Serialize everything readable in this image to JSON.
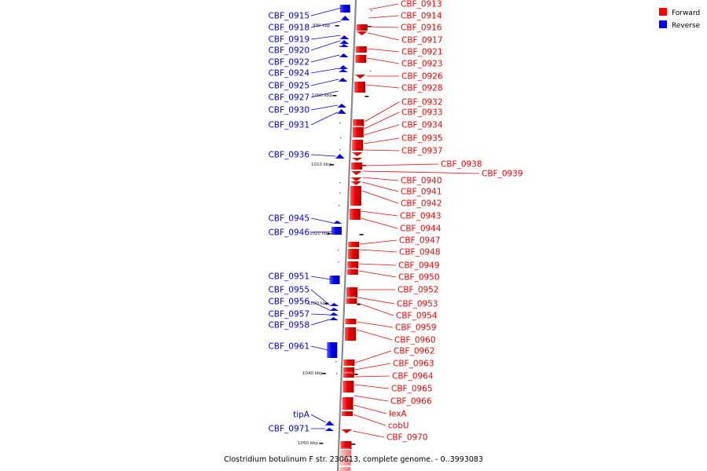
{
  "caption": "Clostridium botulinum F str. 230613, complete genome. - 0..3993083",
  "legend": [
    {
      "label": "Forward",
      "color": "#ff0000"
    },
    {
      "label": "Reverse",
      "color": "#0000ff"
    }
  ],
  "colors": {
    "forward": "#ff0000",
    "reverse": "#0000ff",
    "line": "#888888"
  },
  "scale_marks": [
    "990 kbp",
    "1000 kbp",
    "1010 kbp",
    "1020 kbp",
    "1030 kbp",
    "1040 kbp",
    "1050 kbp"
  ],
  "reverse_genes": [
    "CBF_0915",
    "CBF_0918",
    "CBF_0919",
    "CBF_0920",
    "CBF_0922",
    "CBF_0924",
    "CBF_0925",
    "CBF_0927",
    "CBF_0930",
    "CBF_0931",
    "CBF_0936",
    "CBF_0945",
    "CBF_0946",
    "CBF_0951",
    "CBF_0955",
    "CBF_0956",
    "CBF_0957",
    "CBF_0958",
    "CBF_0961",
    "tipA",
    "CBF_0971"
  ],
  "forward_genes": [
    "CBF_0913",
    "CBF_0914",
    "CBF_0916",
    "CBF_0917",
    "CBF_0921",
    "CBF_0923",
    "CBF_0926",
    "CBF_0928",
    "CBF_0932",
    "CBF_0933",
    "CBF_0934",
    "CBF_0935",
    "CBF_0937",
    "CBF_0938",
    "CBF_0939",
    "CBF_0940",
    "CBF_0941",
    "CBF_0942",
    "CBF_0943",
    "CBF_0944",
    "CBF_0947",
    "CBF_0948",
    "CBF_0949",
    "CBF_0950",
    "CBF_0952",
    "CBF_0953",
    "CBF_0954",
    "CBF_0959",
    "CBF_0960",
    "CBF_0962",
    "CBF_0963",
    "CBF_0964",
    "CBF_0965",
    "CBF_0966",
    "lexA",
    "cobU",
    "CBF_0970"
  ]
}
